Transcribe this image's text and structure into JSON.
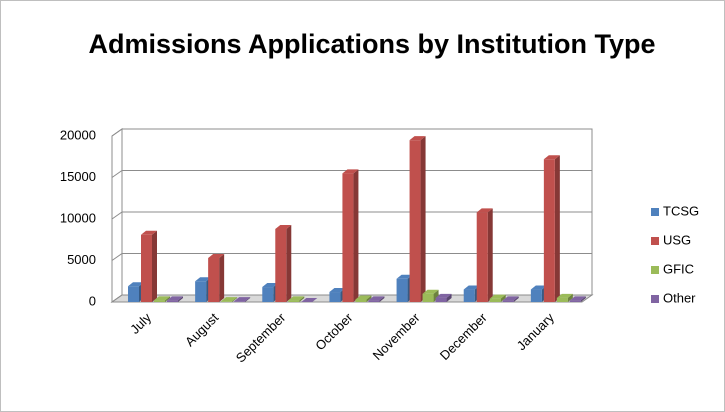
{
  "chart_data": {
    "type": "bar",
    "title": "Admissions Applications by Institution Type",
    "categories": [
      "July",
      "August",
      "September",
      "October",
      "November",
      "December",
      "January"
    ],
    "series": [
      {
        "name": "TCSG",
        "color": "#4f81bd",
        "values": [
          1900,
          2500,
          1800,
          1200,
          2800,
          1500,
          1500
        ]
      },
      {
        "name": "USG",
        "color": "#c0504d",
        "values": [
          8100,
          5300,
          8800,
          15500,
          19500,
          10800,
          17200
        ]
      },
      {
        "name": "GFIC",
        "color": "#9bbb59",
        "values": [
          200,
          100,
          200,
          300,
          1000,
          400,
          500
        ]
      },
      {
        "name": "Other",
        "color": "#8064a2",
        "values": [
          200,
          100,
          0,
          200,
          500,
          200,
          200
        ]
      }
    ],
    "ylim": [
      0,
      20000
    ],
    "yticks": [
      0,
      5000,
      10000,
      15000,
      20000
    ],
    "grid": true,
    "legend": "right"
  }
}
